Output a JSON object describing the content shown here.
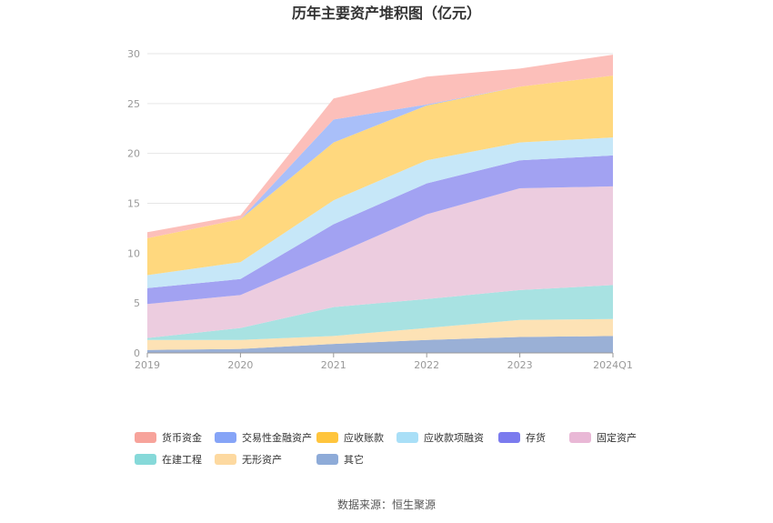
{
  "chart_data": {
    "type": "area",
    "stacked": true,
    "title": "历年主要资产堆积图（亿元）",
    "categories": [
      "2019",
      "2020",
      "2021",
      "2022",
      "2023",
      "2024Q1"
    ],
    "y_ticks": [
      "0",
      "5",
      "10",
      "15",
      "20",
      "25",
      "30"
    ],
    "ylim": [
      0,
      30
    ],
    "grid": true,
    "legend_position": "bottom",
    "source": "数据来源：恒生聚源",
    "series": [
      {
        "name": "其它",
        "color": "#9ab0d6",
        "values": [
          0.3,
          0.4,
          0.9,
          1.3,
          1.6,
          1.7
        ]
      },
      {
        "name": "无形资产",
        "color": "#fde2b5",
        "values": [
          1.0,
          0.9,
          0.8,
          1.2,
          1.7,
          1.7
        ]
      },
      {
        "name": "在建工程",
        "color": "#a8e2e2",
        "values": [
          0.2,
          1.2,
          2.9,
          2.9,
          3.0,
          3.4
        ]
      },
      {
        "name": "固定资产",
        "color": "#ecccdf",
        "values": [
          3.4,
          3.3,
          5.2,
          8.5,
          10.2,
          9.9
        ]
      },
      {
        "name": "存货",
        "color": "#a2a2f2",
        "values": [
          1.6,
          1.6,
          3.1,
          3.1,
          2.8,
          3.1
        ]
      },
      {
        "name": "应收款项融资",
        "color": "#c6e7f8",
        "values": [
          1.3,
          1.7,
          2.4,
          2.3,
          1.8,
          1.8
        ]
      },
      {
        "name": "应收账款",
        "color": "#ffd87e",
        "values": [
          3.7,
          4.3,
          5.8,
          5.5,
          5.6,
          6.2
        ]
      },
      {
        "name": "交易性金融资产",
        "color": "#a9bff9",
        "values": [
          0.0,
          0.0,
          2.3,
          0.1,
          0.0,
          0.0
        ]
      },
      {
        "name": "货币资金",
        "color": "#fcbfba",
        "values": [
          0.6,
          0.4,
          2.1,
          2.8,
          1.8,
          2.1
        ]
      }
    ],
    "legend_order": [
      "货币资金",
      "交易性金融资产",
      "应收账款",
      "应收款项融资",
      "存货",
      "固定资产",
      "在建工程",
      "无形资产",
      "其它"
    ],
    "legend_swatch_colors": {
      "货币资金": "#f7a39b",
      "交易性金融资产": "#86a4f7",
      "应收账款": "#ffc53d",
      "应收款项融资": "#a9dff7",
      "存货": "#7b7bee",
      "固定资产": "#e9b8d6",
      "在建工程": "#86d9d9",
      "无形资产": "#fdd9a0",
      "其它": "#8eabd8"
    }
  }
}
